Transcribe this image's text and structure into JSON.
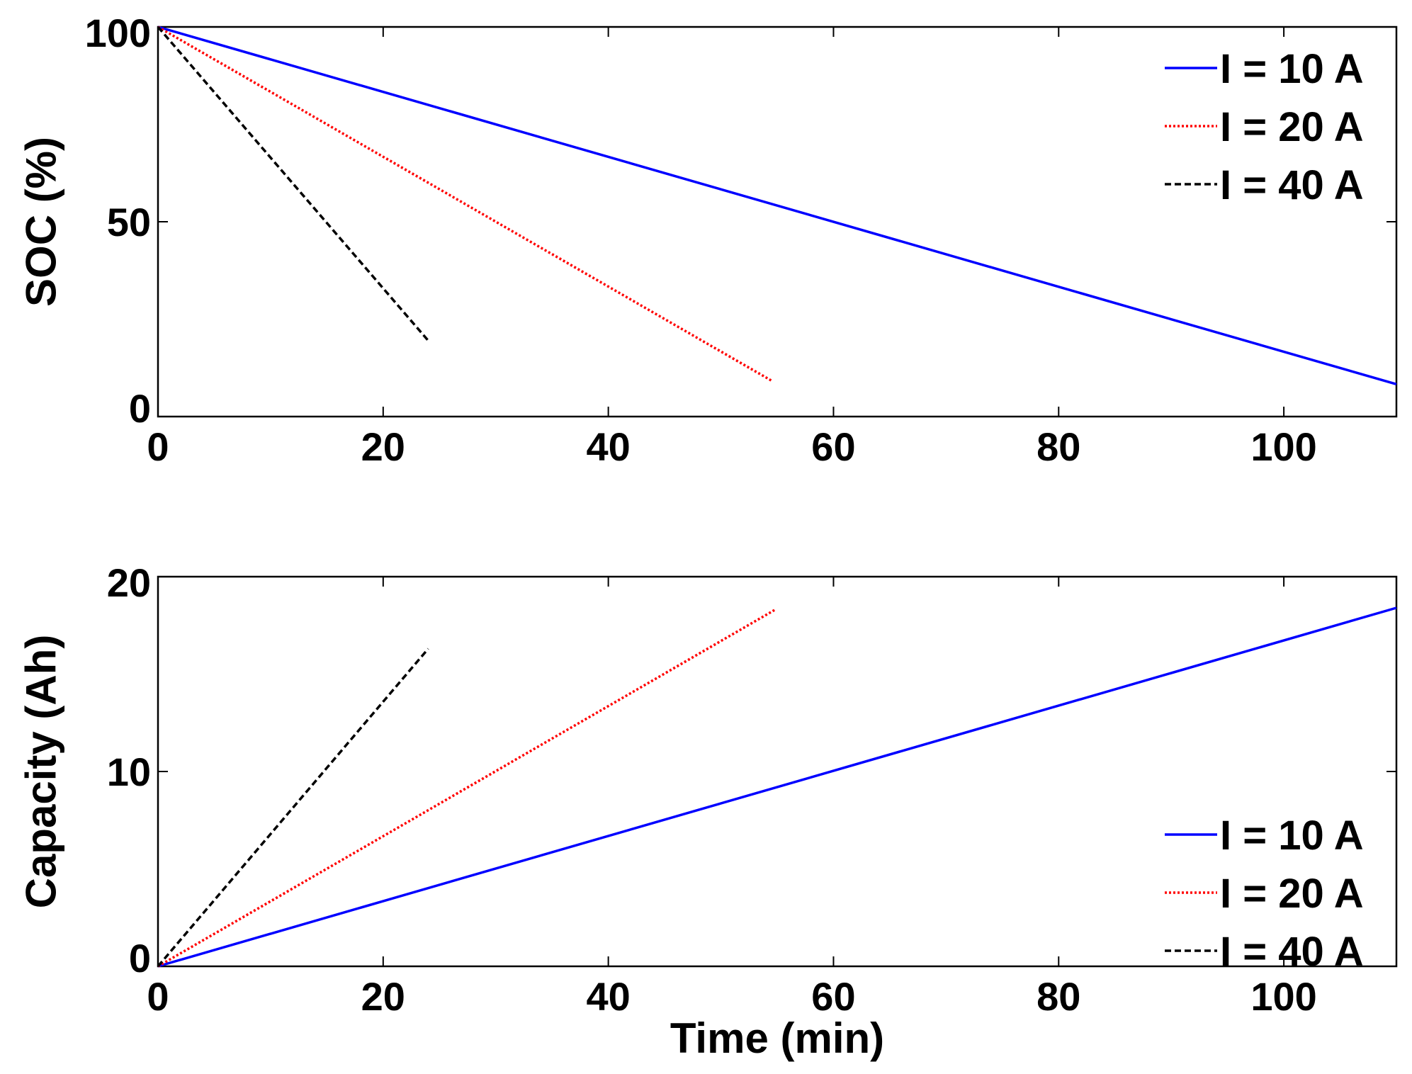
{
  "chart_data": [
    {
      "type": "line",
      "title": "",
      "xlabel": "",
      "ylabel": "SOC (%)",
      "xlim": [
        0,
        110
      ],
      "ylim": [
        0,
        100
      ],
      "xticks": [
        0,
        20,
        40,
        60,
        80,
        100
      ],
      "yticks": [
        0,
        50,
        100
      ],
      "grid": false,
      "legend_position": "top-right",
      "series": [
        {
          "name": "I = 10 A",
          "color": "#0000ff",
          "style": "solid",
          "x": [
            0,
            110
          ],
          "y": [
            100,
            8.3
          ]
        },
        {
          "name": "I = 20 A",
          "color": "#ff0000",
          "style": "dotted",
          "x": [
            0,
            54.5
          ],
          "y": [
            100,
            9.2
          ]
        },
        {
          "name": "I = 40 A",
          "color": "#000000",
          "style": "dashed",
          "x": [
            0,
            24
          ],
          "y": [
            100,
            19.5
          ]
        }
      ]
    },
    {
      "type": "line",
      "title": "",
      "xlabel": "Time (min)",
      "ylabel": "Capacity (Ah)",
      "xlim": [
        0,
        110
      ],
      "ylim": [
        0,
        20
      ],
      "xticks": [
        0,
        20,
        40,
        60,
        80,
        100
      ],
      "yticks": [
        0,
        10,
        20
      ],
      "grid": false,
      "legend_position": "bottom-right",
      "series": [
        {
          "name": "I = 10 A",
          "color": "#0000ff",
          "style": "solid",
          "x": [
            0,
            110
          ],
          "y": [
            0,
            18.4
          ]
        },
        {
          "name": "I = 20 A",
          "color": "#ff0000",
          "style": "dotted",
          "x": [
            0,
            54.8
          ],
          "y": [
            0,
            18.3
          ]
        },
        {
          "name": "I = 40 A",
          "color": "#000000",
          "style": "dashed",
          "x": [
            0,
            24
          ],
          "y": [
            0,
            16.3
          ]
        }
      ]
    }
  ]
}
